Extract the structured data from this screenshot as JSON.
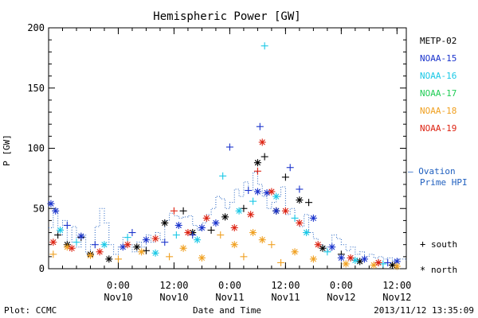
{
  "footer": {
    "left": "Plot: CCMC",
    "center": "Date and Time",
    "right": "2013/11/12 13:35:09"
  },
  "legend": {
    "markers": [
      {
        "symbol": "+",
        "label": "south"
      },
      {
        "symbol": "*",
        "label": "north"
      }
    ],
    "ovation": {
      "line1": "— Ovation",
      "line2": "Prime HPI",
      "color": "#1f5fbf"
    }
  },
  "chart_data": {
    "type": "scatter",
    "title": "Hemispheric Power [GW]",
    "ylabel": "P [GW]",
    "xlabel": "Date and Time",
    "xlim": [
      "2013-11-09T09:00",
      "2013-11-12T14:00"
    ],
    "ylim": [
      0,
      200
    ],
    "yticks": [
      0,
      50,
      100,
      150,
      200
    ],
    "xticks": [
      {
        "t": "2013-11-10T00:00",
        "time": "0:00",
        "date": "Nov10"
      },
      {
        "t": "2013-11-10T12:00",
        "time": "12:00",
        "date": "Nov10"
      },
      {
        "t": "2013-11-11T00:00",
        "time": "0:00",
        "date": "Nov11"
      },
      {
        "t": "2013-11-11T12:00",
        "time": "12:00",
        "date": "Nov11"
      },
      {
        "t": "2013-11-12T00:00",
        "time": "0:00",
        "date": "Nov12"
      },
      {
        "t": "2013-11-12T12:00",
        "time": "12:00",
        "date": "Nov12"
      }
    ],
    "series": [
      {
        "name": "METP-02",
        "color": "#000000",
        "points": [
          {
            "t": "2013-11-09T11:00",
            "y": 28,
            "m": "+"
          },
          {
            "t": "2013-11-09T13:00",
            "y": 20,
            "m": "*"
          },
          {
            "t": "2013-11-09T16:00",
            "y": 26,
            "m": "+"
          },
          {
            "t": "2013-11-09T18:00",
            "y": 12,
            "m": "*"
          },
          {
            "t": "2013-11-09T22:00",
            "y": 8,
            "m": "*"
          },
          {
            "t": "2013-11-10T04:00",
            "y": 18,
            "m": "*"
          },
          {
            "t": "2013-11-10T06:00",
            "y": 15,
            "m": "+"
          },
          {
            "t": "2013-11-10T10:00",
            "y": 38,
            "m": "*"
          },
          {
            "t": "2013-11-10T14:00",
            "y": 48,
            "m": "+"
          },
          {
            "t": "2013-11-10T16:00",
            "y": 30,
            "m": "*"
          },
          {
            "t": "2013-11-10T20:00",
            "y": 32,
            "m": "+"
          },
          {
            "t": "2013-11-10T23:00",
            "y": 43,
            "m": "*"
          },
          {
            "t": "2013-11-11T03:00",
            "y": 50,
            "m": "+"
          },
          {
            "t": "2013-11-11T06:00",
            "y": 88,
            "m": "*"
          },
          {
            "t": "2013-11-11T07:30",
            "y": 93,
            "m": "+"
          },
          {
            "t": "2013-11-11T10:00",
            "y": 48,
            "m": "*"
          },
          {
            "t": "2013-11-11T12:00",
            "y": 76,
            "m": "+"
          },
          {
            "t": "2013-11-11T15:00",
            "y": 57,
            "m": "*"
          },
          {
            "t": "2013-11-11T17:00",
            "y": 55,
            "m": "+"
          },
          {
            "t": "2013-11-11T20:00",
            "y": 17,
            "m": "*"
          },
          {
            "t": "2013-11-12T00:00",
            "y": 12,
            "m": "+"
          },
          {
            "t": "2013-11-12T04:00",
            "y": 6,
            "m": "*"
          },
          {
            "t": "2013-11-12T08:00",
            "y": 5,
            "m": "+"
          },
          {
            "t": "2013-11-12T11:00",
            "y": 3,
            "m": "*"
          }
        ]
      },
      {
        "name": "NOAA-15",
        "color": "#1a33cc",
        "points": [
          {
            "t": "2013-11-09T09:30",
            "y": 54,
            "m": "*"
          },
          {
            "t": "2013-11-09T10:30",
            "y": 48,
            "m": "*"
          },
          {
            "t": "2013-11-09T13:00",
            "y": 36,
            "m": "+"
          },
          {
            "t": "2013-11-09T16:00",
            "y": 27,
            "m": "*"
          },
          {
            "t": "2013-11-09T19:00",
            "y": 20,
            "m": "+"
          },
          {
            "t": "2013-11-10T01:00",
            "y": 18,
            "m": "*"
          },
          {
            "t": "2013-11-10T03:00",
            "y": 30,
            "m": "+"
          },
          {
            "t": "2013-11-10T06:00",
            "y": 24,
            "m": "*"
          },
          {
            "t": "2013-11-10T10:00",
            "y": 22,
            "m": "+"
          },
          {
            "t": "2013-11-10T13:00",
            "y": 36,
            "m": "*"
          },
          {
            "t": "2013-11-10T16:00",
            "y": 28,
            "m": "+"
          },
          {
            "t": "2013-11-10T18:00",
            "y": 34,
            "m": "*"
          },
          {
            "t": "2013-11-10T21:00",
            "y": 38,
            "m": "*"
          },
          {
            "t": "2013-11-11T00:00",
            "y": 101,
            "m": "+"
          },
          {
            "t": "2013-11-11T04:00",
            "y": 65,
            "m": "+"
          },
          {
            "t": "2013-11-11T06:00",
            "y": 64,
            "m": "*"
          },
          {
            "t": "2013-11-11T06:30",
            "y": 118,
            "m": "+"
          },
          {
            "t": "2013-11-11T08:00",
            "y": 63,
            "m": "*"
          },
          {
            "t": "2013-11-11T10:00",
            "y": 48,
            "m": "*"
          },
          {
            "t": "2013-11-11T13:00",
            "y": 84,
            "m": "+"
          },
          {
            "t": "2013-11-11T15:00",
            "y": 66,
            "m": "+"
          },
          {
            "t": "2013-11-11T18:00",
            "y": 42,
            "m": "*"
          },
          {
            "t": "2013-11-11T22:00",
            "y": 18,
            "m": "*"
          },
          {
            "t": "2013-11-12T00:00",
            "y": 9,
            "m": "*"
          },
          {
            "t": "2013-11-12T05:00",
            "y": 8,
            "m": "*"
          },
          {
            "t": "2013-11-12T10:00",
            "y": 5,
            "m": "+"
          },
          {
            "t": "2013-11-12T12:00",
            "y": 6,
            "m": "*"
          }
        ]
      },
      {
        "name": "NOAA-16",
        "color": "#19c8e6",
        "points": [
          {
            "t": "2013-11-09T11:30",
            "y": 32,
            "m": "*"
          },
          {
            "t": "2013-11-09T15:00",
            "y": 22,
            "m": "+"
          },
          {
            "t": "2013-11-09T21:00",
            "y": 20,
            "m": "*"
          },
          {
            "t": "2013-11-10T02:00",
            "y": 26,
            "m": "+"
          },
          {
            "t": "2013-11-10T08:00",
            "y": 13,
            "m": "*"
          },
          {
            "t": "2013-11-10T12:30",
            "y": 28,
            "m": "+"
          },
          {
            "t": "2013-11-10T17:00",
            "y": 24,
            "m": "*"
          },
          {
            "t": "2013-11-10T22:30",
            "y": 77,
            "m": "+"
          },
          {
            "t": "2013-11-11T02:00",
            "y": 48,
            "m": "*"
          },
          {
            "t": "2013-11-11T05:00",
            "y": 56,
            "m": "+"
          },
          {
            "t": "2013-11-11T07:30",
            "y": 185,
            "m": "+"
          },
          {
            "t": "2013-11-11T10:00",
            "y": 60,
            "m": "*"
          },
          {
            "t": "2013-11-11T14:00",
            "y": 42,
            "m": "+"
          },
          {
            "t": "2013-11-11T16:30",
            "y": 30,
            "m": "*"
          },
          {
            "t": "2013-11-11T21:00",
            "y": 14,
            "m": "+"
          },
          {
            "t": "2013-11-12T03:00",
            "y": 7,
            "m": "*"
          },
          {
            "t": "2013-11-12T09:00",
            "y": 4,
            "m": "+"
          }
        ]
      },
      {
        "name": "NOAA-17",
        "color": "#20cc55",
        "points": []
      },
      {
        "name": "NOAA-18",
        "color": "#f0a020",
        "points": [
          {
            "t": "2013-11-09T10:00",
            "y": 12,
            "m": "+"
          },
          {
            "t": "2013-11-09T13:00",
            "y": 18,
            "m": "*"
          },
          {
            "t": "2013-11-09T18:00",
            "y": 11,
            "m": "*"
          },
          {
            "t": "2013-11-10T00:00",
            "y": 8,
            "m": "+"
          },
          {
            "t": "2013-11-10T05:00",
            "y": 14,
            "m": "*"
          },
          {
            "t": "2013-11-10T11:00",
            "y": 10,
            "m": "+"
          },
          {
            "t": "2013-11-10T14:00",
            "y": 17,
            "m": "*"
          },
          {
            "t": "2013-11-10T18:00",
            "y": 9,
            "m": "*"
          },
          {
            "t": "2013-11-10T22:00",
            "y": 28,
            "m": "+"
          },
          {
            "t": "2013-11-11T01:00",
            "y": 20,
            "m": "*"
          },
          {
            "t": "2013-11-11T03:00",
            "y": 10,
            "m": "+"
          },
          {
            "t": "2013-11-11T05:00",
            "y": 30,
            "m": "*"
          },
          {
            "t": "2013-11-11T07:00",
            "y": 24,
            "m": "*"
          },
          {
            "t": "2013-11-11T09:00",
            "y": 20,
            "m": "+"
          },
          {
            "t": "2013-11-11T11:00",
            "y": 5,
            "m": "+"
          },
          {
            "t": "2013-11-11T14:00",
            "y": 14,
            "m": "*"
          },
          {
            "t": "2013-11-11T18:00",
            "y": 8,
            "m": "*"
          },
          {
            "t": "2013-11-12T01:00",
            "y": 4,
            "m": "*"
          },
          {
            "t": "2013-11-12T07:00",
            "y": 3,
            "m": "*"
          },
          {
            "t": "2013-11-12T12:00",
            "y": 2,
            "m": "*"
          }
        ]
      },
      {
        "name": "NOAA-19",
        "color": "#dd2211",
        "points": [
          {
            "t": "2013-11-09T10:00",
            "y": 22,
            "m": "*"
          },
          {
            "t": "2013-11-09T14:00",
            "y": 17,
            "m": "*"
          },
          {
            "t": "2013-11-09T20:00",
            "y": 14,
            "m": "*"
          },
          {
            "t": "2013-11-10T02:00",
            "y": 20,
            "m": "*"
          },
          {
            "t": "2013-11-10T08:00",
            "y": 25,
            "m": "*"
          },
          {
            "t": "2013-11-10T12:00",
            "y": 48,
            "m": "+"
          },
          {
            "t": "2013-11-10T15:00",
            "y": 30,
            "m": "*"
          },
          {
            "t": "2013-11-10T19:00",
            "y": 42,
            "m": "*"
          },
          {
            "t": "2013-11-11T01:00",
            "y": 34,
            "m": "*"
          },
          {
            "t": "2013-11-11T04:30",
            "y": 45,
            "m": "*"
          },
          {
            "t": "2013-11-11T06:00",
            "y": 81,
            "m": "+"
          },
          {
            "t": "2013-11-11T07:00",
            "y": 105,
            "m": "*"
          },
          {
            "t": "2013-11-11T09:00",
            "y": 64,
            "m": "*"
          },
          {
            "t": "2013-11-11T12:00",
            "y": 48,
            "m": "*"
          },
          {
            "t": "2013-11-11T15:00",
            "y": 38,
            "m": "*"
          },
          {
            "t": "2013-11-11T19:00",
            "y": 20,
            "m": "*"
          },
          {
            "t": "2013-11-12T02:00",
            "y": 9,
            "m": "*"
          },
          {
            "t": "2013-11-12T08:00",
            "y": 5,
            "m": "*"
          }
        ]
      }
    ],
    "ovation": {
      "name": "Ovation Prime HPI",
      "color": "#1f5fbf",
      "values": [
        {
          "t": "2013-11-09T09:00",
          "y": 34
        },
        {
          "t": "2013-11-09T10:00",
          "y": 50
        },
        {
          "t": "2013-11-09T11:00",
          "y": 28
        },
        {
          "t": "2013-11-09T12:00",
          "y": 40
        },
        {
          "t": "2013-11-09T13:00",
          "y": 22
        },
        {
          "t": "2013-11-09T14:00",
          "y": 35
        },
        {
          "t": "2013-11-09T15:00",
          "y": 18
        },
        {
          "t": "2013-11-09T16:00",
          "y": 28
        },
        {
          "t": "2013-11-09T17:00",
          "y": 13
        },
        {
          "t": "2013-11-09T18:00",
          "y": 20
        },
        {
          "t": "2013-11-09T19:00",
          "y": 35
        },
        {
          "t": "2013-11-09T20:00",
          "y": 50
        },
        {
          "t": "2013-11-09T21:00",
          "y": 38
        },
        {
          "t": "2013-11-09T22:00",
          "y": 20
        },
        {
          "t": "2013-11-09T23:00",
          "y": 12
        },
        {
          "t": "2013-11-10T00:00",
          "y": 18
        },
        {
          "t": "2013-11-10T01:00",
          "y": 26
        },
        {
          "t": "2013-11-10T02:00",
          "y": 20
        },
        {
          "t": "2013-11-10T03:00",
          "y": 14
        },
        {
          "t": "2013-11-10T04:00",
          "y": 22
        },
        {
          "t": "2013-11-10T05:00",
          "y": 18
        },
        {
          "t": "2013-11-10T06:00",
          "y": 28
        },
        {
          "t": "2013-11-10T07:00",
          "y": 22
        },
        {
          "t": "2013-11-10T08:00",
          "y": 30
        },
        {
          "t": "2013-11-10T09:00",
          "y": 24
        },
        {
          "t": "2013-11-10T10:00",
          "y": 40
        },
        {
          "t": "2013-11-10T11:00",
          "y": 46
        },
        {
          "t": "2013-11-10T12:00",
          "y": 44
        },
        {
          "t": "2013-11-10T13:00",
          "y": 42
        },
        {
          "t": "2013-11-10T14:00",
          "y": 43
        },
        {
          "t": "2013-11-10T15:00",
          "y": 44
        },
        {
          "t": "2013-11-10T16:00",
          "y": 36
        },
        {
          "t": "2013-11-10T17:00",
          "y": 32
        },
        {
          "t": "2013-11-10T18:00",
          "y": 38
        },
        {
          "t": "2013-11-10T19:00",
          "y": 45
        },
        {
          "t": "2013-11-10T20:00",
          "y": 50
        },
        {
          "t": "2013-11-10T21:00",
          "y": 60
        },
        {
          "t": "2013-11-10T22:00",
          "y": 58
        },
        {
          "t": "2013-11-10T23:00",
          "y": 50
        },
        {
          "t": "2013-11-11T00:00",
          "y": 55
        },
        {
          "t": "2013-11-11T01:00",
          "y": 66
        },
        {
          "t": "2013-11-11T02:00",
          "y": 60
        },
        {
          "t": "2013-11-11T03:00",
          "y": 72
        },
        {
          "t": "2013-11-11T04:00",
          "y": 65
        },
        {
          "t": "2013-11-11T05:00",
          "y": 80
        },
        {
          "t": "2013-11-11T06:00",
          "y": 70
        },
        {
          "t": "2013-11-11T07:00",
          "y": 60
        },
        {
          "t": "2013-11-11T08:00",
          "y": 50
        },
        {
          "t": "2013-11-11T09:00",
          "y": 55
        },
        {
          "t": "2013-11-11T10:00",
          "y": 60
        },
        {
          "t": "2013-11-11T11:00",
          "y": 68
        },
        {
          "t": "2013-11-11T12:00",
          "y": 45
        },
        {
          "t": "2013-11-11T13:00",
          "y": 50
        },
        {
          "t": "2013-11-11T14:00",
          "y": 40
        },
        {
          "t": "2013-11-11T15:00",
          "y": 35
        },
        {
          "t": "2013-11-11T16:00",
          "y": 45
        },
        {
          "t": "2013-11-11T17:00",
          "y": 30
        },
        {
          "t": "2013-11-11T18:00",
          "y": 25
        },
        {
          "t": "2013-11-11T19:00",
          "y": 20
        },
        {
          "t": "2013-11-11T20:00",
          "y": 18
        },
        {
          "t": "2013-11-11T21:00",
          "y": 15
        },
        {
          "t": "2013-11-11T22:00",
          "y": 28
        },
        {
          "t": "2013-11-11T23:00",
          "y": 25
        },
        {
          "t": "2013-11-12T00:00",
          "y": 20
        },
        {
          "t": "2013-11-12T01:00",
          "y": 15
        },
        {
          "t": "2013-11-12T02:00",
          "y": 18
        },
        {
          "t": "2013-11-12T03:00",
          "y": 12
        },
        {
          "t": "2013-11-12T04:00",
          "y": 14
        },
        {
          "t": "2013-11-12T05:00",
          "y": 10
        },
        {
          "t": "2013-11-12T06:00",
          "y": 12
        },
        {
          "t": "2013-11-12T07:00",
          "y": 9
        },
        {
          "t": "2013-11-12T08:00",
          "y": 10
        },
        {
          "t": "2013-11-12T09:00",
          "y": 8
        },
        {
          "t": "2013-11-12T10:00",
          "y": 9
        },
        {
          "t": "2013-11-12T11:00",
          "y": 7
        },
        {
          "t": "2013-11-12T12:00",
          "y": 8
        },
        {
          "t": "2013-11-12T13:00",
          "y": 8
        },
        {
          "t": "2013-11-12T14:00",
          "y": 7
        }
      ]
    }
  }
}
